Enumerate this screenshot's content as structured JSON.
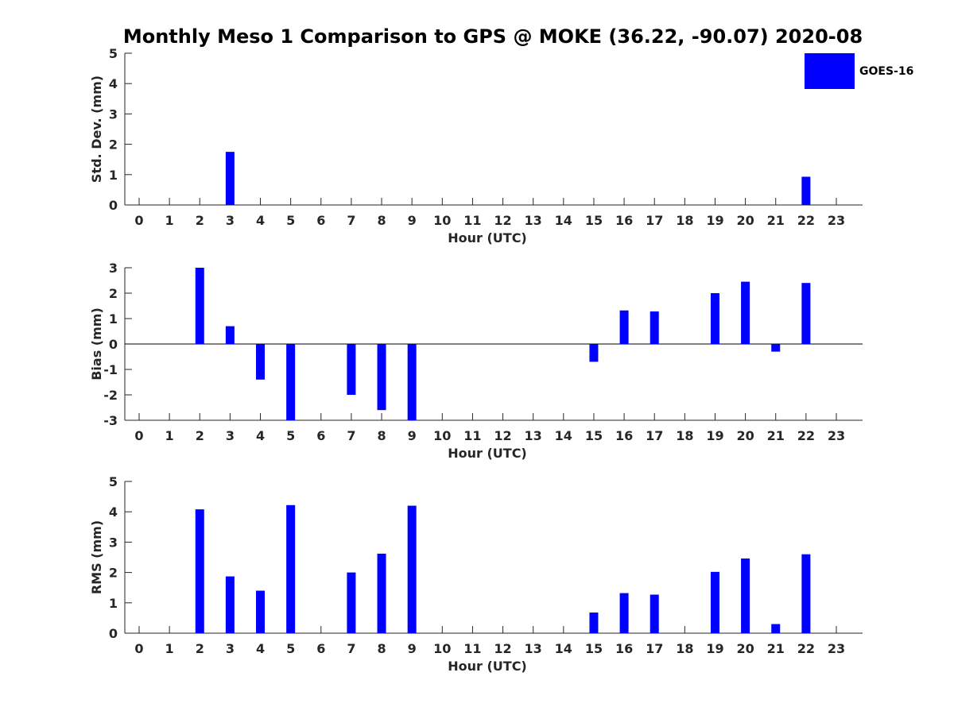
{
  "chart_data": [
    {
      "type": "bar",
      "title": "Monthly Meso 1 Comparison to GPS @ MOKE (36.22, -90.07) 2020-08",
      "xlabel": "Hour (UTC)",
      "ylabel": "Std. Dev. (mm)",
      "ylim": [
        0,
        5
      ],
      "yticks": [
        0,
        1,
        2,
        3,
        4,
        5
      ],
      "categories": [
        "0",
        "1",
        "2",
        "3",
        "4",
        "5",
        "6",
        "7",
        "8",
        "9",
        "10",
        "11",
        "12",
        "13",
        "14",
        "15",
        "16",
        "17",
        "18",
        "19",
        "20",
        "21",
        "22",
        "23"
      ],
      "series": [
        {
          "name": "GOES-16",
          "color": "#0000ff",
          "values": [
            null,
            null,
            null,
            1.75,
            null,
            null,
            null,
            null,
            null,
            null,
            null,
            null,
            null,
            null,
            null,
            null,
            null,
            null,
            null,
            null,
            null,
            null,
            0.93,
            null
          ]
        }
      ],
      "legend": {
        "position": "top-right",
        "entries": [
          "GOES-16"
        ]
      }
    },
    {
      "type": "bar",
      "xlabel": "Hour (UTC)",
      "ylabel": "Bias (mm)",
      "ylim": [
        -3,
        3
      ],
      "yticks": [
        -3,
        -2,
        -1,
        0,
        1,
        2,
        3
      ],
      "zero_line": true,
      "categories": [
        "0",
        "1",
        "2",
        "3",
        "4",
        "5",
        "6",
        "7",
        "8",
        "9",
        "10",
        "11",
        "12",
        "13",
        "14",
        "15",
        "16",
        "17",
        "18",
        "19",
        "20",
        "21",
        "22",
        "23"
      ],
      "series": [
        {
          "name": "GOES-16",
          "color": "#0000ff",
          "values": [
            null,
            null,
            3.0,
            0.7,
            -1.4,
            -3.0,
            null,
            -2.0,
            -2.6,
            -3.0,
            null,
            null,
            null,
            null,
            null,
            -0.7,
            1.32,
            1.28,
            null,
            2.0,
            2.45,
            -0.3,
            2.4,
            null
          ]
        }
      ]
    },
    {
      "type": "bar",
      "xlabel": "Hour (UTC)",
      "ylabel": "RMS (mm)",
      "ylim": [
        0,
        5
      ],
      "yticks": [
        0,
        1,
        2,
        3,
        4,
        5
      ],
      "categories": [
        "0",
        "1",
        "2",
        "3",
        "4",
        "5",
        "6",
        "7",
        "8",
        "9",
        "10",
        "11",
        "12",
        "13",
        "14",
        "15",
        "16",
        "17",
        "18",
        "19",
        "20",
        "21",
        "22",
        "23"
      ],
      "series": [
        {
          "name": "GOES-16",
          "color": "#0000ff",
          "values": [
            null,
            null,
            4.08,
            1.87,
            1.4,
            4.22,
            null,
            2.0,
            2.62,
            4.2,
            null,
            null,
            null,
            null,
            null,
            0.68,
            1.32,
            1.27,
            null,
            2.02,
            2.46,
            0.3,
            2.6,
            null
          ]
        }
      ]
    }
  ]
}
